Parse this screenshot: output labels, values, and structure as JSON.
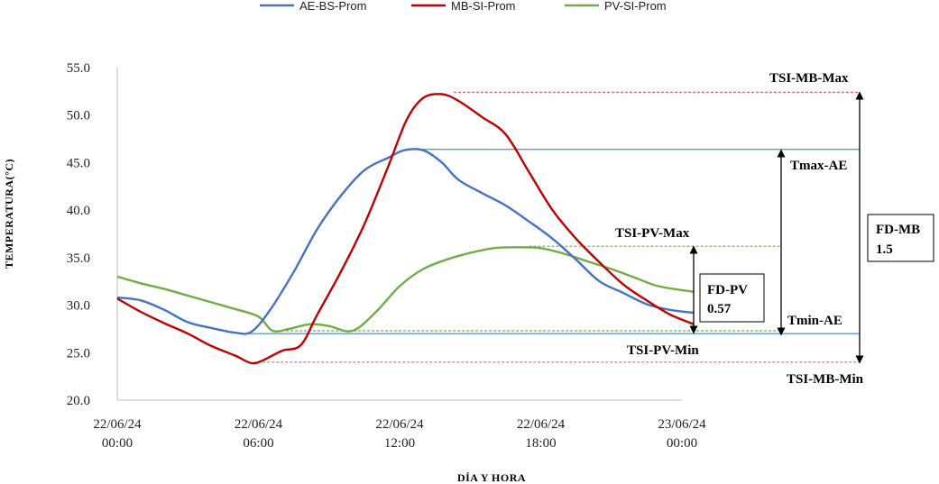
{
  "chart_data": {
    "type": "line",
    "xlabel": "DÍA Y HORA",
    "ylabel": "TEMPERATURA(°C)",
    "ylim": [
      20,
      55
    ],
    "y_ticks": [
      "20.0",
      "25.0",
      "30.0",
      "35.0",
      "40.0",
      "45.0",
      "50.0",
      "55.0"
    ],
    "x_range_hours": [
      0,
      24
    ],
    "x_ticks": [
      {
        "date": "22/06/24",
        "time": "00:00",
        "hour": 0
      },
      {
        "date": "22/06/24",
        "time": "06:00",
        "hour": 6
      },
      {
        "date": "22/06/24",
        "time": "12:00",
        "hour": 12
      },
      {
        "date": "22/06/24",
        "time": "18:00",
        "hour": 18
      },
      {
        "date": "23/06/24",
        "time": "00:00",
        "hour": 24
      }
    ],
    "grid": false,
    "legend_position": "top-center",
    "series": [
      {
        "name": "AE-BS-Prom",
        "color": "#4472c4",
        "points": [
          [
            0,
            30.8
          ],
          [
            1,
            30.5
          ],
          [
            2,
            29.5
          ],
          [
            3,
            28.2
          ],
          [
            4,
            27.6
          ],
          [
            5,
            27.1
          ],
          [
            5.7,
            27.2
          ],
          [
            6.5,
            29.5
          ],
          [
            7.5,
            33.5
          ],
          [
            8.5,
            38
          ],
          [
            9.5,
            41.5
          ],
          [
            10.5,
            44.2
          ],
          [
            11.5,
            45.5
          ],
          [
            12.2,
            46.3
          ],
          [
            13,
            46.3
          ],
          [
            13.8,
            45
          ],
          [
            14.5,
            43.2
          ],
          [
            15.5,
            41.8
          ],
          [
            16.5,
            40.5
          ],
          [
            17.5,
            38.8
          ],
          [
            18.5,
            37
          ],
          [
            19.5,
            34.8
          ],
          [
            20.5,
            32.5
          ],
          [
            21.5,
            31.3
          ],
          [
            22.5,
            30.1
          ],
          [
            23.5,
            29.5
          ],
          [
            24.5,
            29.2
          ]
        ]
      },
      {
        "name": "MB-SI-Prom",
        "color": "#c00000",
        "points": [
          [
            0,
            30.7
          ],
          [
            1,
            29.3
          ],
          [
            2,
            28.1
          ],
          [
            3,
            27
          ],
          [
            4,
            25.7
          ],
          [
            5,
            24.7
          ],
          [
            5.7,
            23.9
          ],
          [
            6.2,
            24.2
          ],
          [
            7,
            25.2
          ],
          [
            7.8,
            25.8
          ],
          [
            8.5,
            29
          ],
          [
            9.5,
            33.5
          ],
          [
            10.5,
            38.5
          ],
          [
            11.5,
            44.5
          ],
          [
            12.3,
            49.5
          ],
          [
            13,
            51.8
          ],
          [
            13.8,
            52.2
          ],
          [
            14.5,
            51.5
          ],
          [
            15.5,
            49.8
          ],
          [
            16.5,
            48
          ],
          [
            17.5,
            44
          ],
          [
            18.5,
            40
          ],
          [
            19.5,
            37
          ],
          [
            20.5,
            34.5
          ],
          [
            21.5,
            32.2
          ],
          [
            22.5,
            30.5
          ],
          [
            23.5,
            29
          ],
          [
            24.5,
            28
          ]
        ]
      },
      {
        "name": "PV-SI-Prom",
        "color": "#70ad47",
        "points": [
          [
            0,
            33
          ],
          [
            1,
            32.3
          ],
          [
            2,
            31.7
          ],
          [
            3,
            31
          ],
          [
            4,
            30.3
          ],
          [
            5,
            29.6
          ],
          [
            6,
            28.8
          ],
          [
            6.6,
            27.3
          ],
          [
            7.3,
            27.5
          ],
          [
            8.2,
            28
          ],
          [
            9,
            27.8
          ],
          [
            10,
            27.3
          ],
          [
            11,
            29.3
          ],
          [
            12,
            32
          ],
          [
            13,
            33.8
          ],
          [
            14,
            34.8
          ],
          [
            15,
            35.5
          ],
          [
            16,
            36
          ],
          [
            17,
            36.1
          ],
          [
            18,
            36
          ],
          [
            19,
            35.4
          ],
          [
            20,
            34.6
          ],
          [
            21,
            33.8
          ],
          [
            22,
            32.9
          ],
          [
            23,
            32
          ],
          [
            24.5,
            31.4
          ]
        ]
      }
    ],
    "reference_lines": [
      {
        "label": "TSI-MB-Max",
        "value": 52.4,
        "color": "#e06666",
        "style": "dotted"
      },
      {
        "label": "Tmax-AE",
        "value": 46.4,
        "color": "#5b9bd5",
        "style": "solid"
      },
      {
        "label": "TSI-PV-Max",
        "value": 36.2,
        "color": "#70ad47",
        "style": "dotted"
      },
      {
        "label": "TSI-PV-Min",
        "value": 27.3,
        "color": "#70ad47",
        "style": "dotted"
      },
      {
        "label": "Tmin-AE",
        "value": 27.0,
        "color": "#5b9bd5",
        "style": "solid"
      },
      {
        "label": "TSI-MB-Min",
        "value": 24.0,
        "color": "#e06666",
        "style": "dotted"
      }
    ],
    "annotations": {
      "fd_pv": {
        "line1": "FD-PV",
        "line2": "0.57"
      },
      "fd_mb": {
        "line1": "FD-MB",
        "line2": "1.5"
      }
    }
  }
}
